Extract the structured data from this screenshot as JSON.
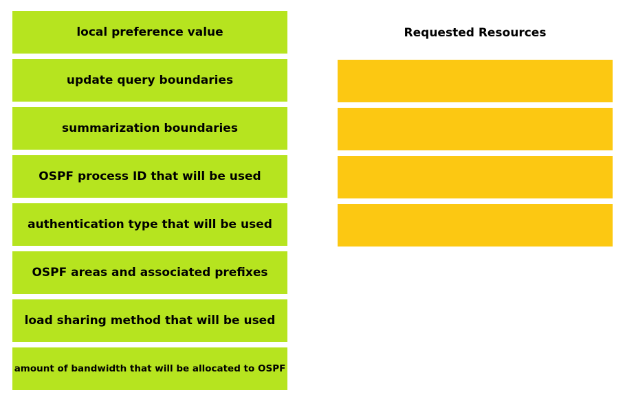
{
  "source_items": [
    {
      "label": "local preference value"
    },
    {
      "label": "update query boundaries"
    },
    {
      "label": "summarization boundaries"
    },
    {
      "label": "OSPF process ID that will be used"
    },
    {
      "label": "authentication type that will be used"
    },
    {
      "label": "OSPF areas and associated prefixes"
    },
    {
      "label": "load sharing method that will be used"
    },
    {
      "label": "amount of bandwidth that will be allocated to OSPF"
    }
  ],
  "target": {
    "title": "Requested Resources",
    "slots": 4
  },
  "colors": {
    "source_item_bg": "#b6e41f",
    "target_slot_bg": "#fcc812"
  }
}
